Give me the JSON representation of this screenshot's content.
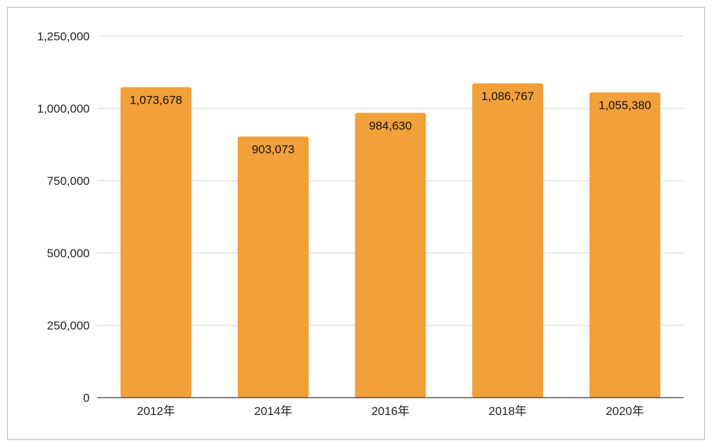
{
  "chart_data": {
    "type": "bar",
    "categories": [
      "2012年",
      "2014年",
      "2016年",
      "2018年",
      "2020年"
    ],
    "values": [
      1073678,
      903073,
      984630,
      1086767,
      1055380
    ],
    "value_labels": [
      "1,073,678",
      "903,073",
      "984,630",
      "1,086,767",
      "1,055,380"
    ],
    "title": "",
    "xlabel": "",
    "ylabel": "",
    "ylim": [
      0,
      1250000
    ],
    "yticks": [
      0,
      250000,
      500000,
      750000,
      1000000,
      1250000
    ],
    "ytick_labels": [
      "0",
      "250,000",
      "500,000",
      "750,000",
      "1,000,000",
      "1,250,000"
    ],
    "grid": true,
    "legend": "none",
    "bar_color": "#F1A03A",
    "grid_color": "#d0d0d0",
    "axis_color": "#333333"
  }
}
